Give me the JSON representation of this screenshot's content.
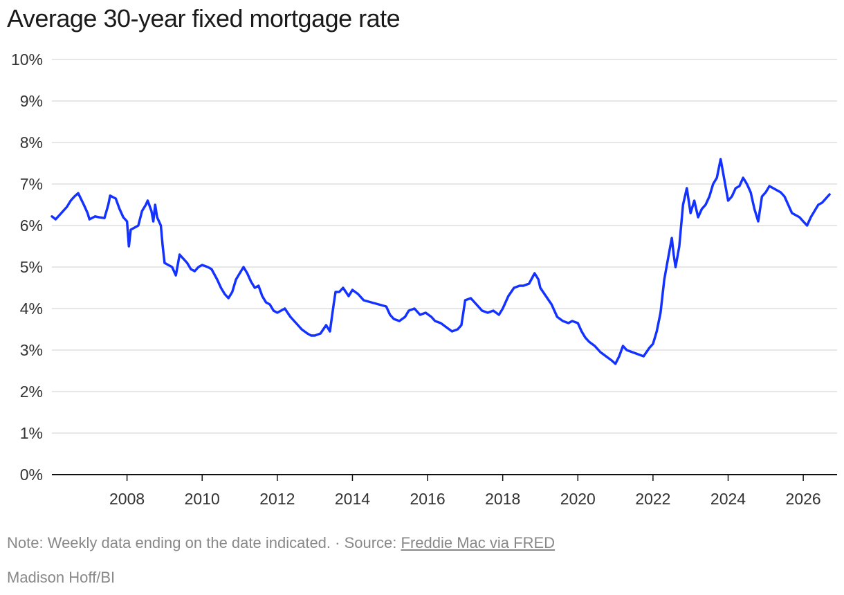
{
  "chart_data": {
    "type": "line",
    "title": "Average 30-year fixed mortgage rate",
    "xlabel": "",
    "ylabel": "",
    "ylim": [
      0,
      10
    ],
    "xlim": [
      2006.0,
      2026.9
    ],
    "grid": true,
    "y_ticks": [
      "0%",
      "1%",
      "2%",
      "3%",
      "4%",
      "5%",
      "6%",
      "7%",
      "8%",
      "9%",
      "10%"
    ],
    "y_tick_values": [
      0,
      1,
      2,
      3,
      4,
      5,
      6,
      7,
      8,
      9,
      10
    ],
    "x_ticks": [
      "2008",
      "2010",
      "2012",
      "2014",
      "2016",
      "2018",
      "2020",
      "2022",
      "2024",
      "2026"
    ],
    "x_tick_values": [
      2008,
      2010,
      2012,
      2014,
      2016,
      2018,
      2020,
      2022,
      2024,
      2026
    ],
    "color": "#1432ff",
    "series": [
      {
        "x": [
          2006.0,
          2006.1,
          2006.25,
          2006.4,
          2006.5,
          2006.6,
          2006.7,
          2006.85,
          2006.95,
          2007.0,
          2007.15,
          2007.25,
          2007.4,
          2007.5,
          2007.55,
          2007.7,
          2007.8,
          2007.9,
          2008.0,
          2008.05,
          2008.1,
          2008.2,
          2008.3,
          2008.4,
          2008.5,
          2008.55,
          2008.65,
          2008.7,
          2008.75,
          2008.8,
          2008.9,
          2008.95,
          2009.0,
          2009.1,
          2009.2,
          2009.3,
          2009.4,
          2009.5,
          2009.6,
          2009.7,
          2009.8,
          2009.9,
          2010.0,
          2010.15,
          2010.25,
          2010.4,
          2010.5,
          2010.6,
          2010.7,
          2010.8,
          2010.9,
          2011.0,
          2011.1,
          2011.2,
          2011.3,
          2011.4,
          2011.5,
          2011.6,
          2011.7,
          2011.8,
          2011.9,
          2012.0,
          2012.2,
          2012.35,
          2012.5,
          2012.65,
          2012.8,
          2012.9,
          2013.0,
          2013.15,
          2013.3,
          2013.4,
          2013.5,
          2013.55,
          2013.65,
          2013.75,
          2013.9,
          2014.0,
          2014.15,
          2014.3,
          2014.5,
          2014.7,
          2014.9,
          2015.0,
          2015.1,
          2015.25,
          2015.4,
          2015.5,
          2015.65,
          2015.8,
          2015.95,
          2016.1,
          2016.2,
          2016.35,
          2016.5,
          2016.65,
          2016.8,
          2016.9,
          2016.95,
          2017.0,
          2017.15,
          2017.3,
          2017.45,
          2017.6,
          2017.75,
          2017.9,
          2018.0,
          2018.15,
          2018.3,
          2018.45,
          2018.55,
          2018.7,
          2018.85,
          2018.95,
          2019.0,
          2019.15,
          2019.3,
          2019.45,
          2019.6,
          2019.75,
          2019.85,
          2020.0,
          2020.1,
          2020.2,
          2020.3,
          2020.45,
          2020.6,
          2020.75,
          2020.9,
          2021.0,
          2021.1,
          2021.2,
          2021.3,
          2021.45,
          2021.6,
          2021.75,
          2021.9,
          2022.0,
          2022.1,
          2022.2,
          2022.3,
          2022.4,
          2022.5,
          2022.55,
          2022.6,
          2022.7,
          2022.8,
          2022.9,
          2023.0,
          2023.1,
          2023.2,
          2023.3,
          2023.4,
          2023.5,
          2023.6,
          2023.7,
          2023.8,
          2023.9,
          2024.0,
          2024.1,
          2024.2,
          2024.3,
          2024.4,
          2024.5,
          2024.6,
          2024.7,
          2024.8,
          2024.9,
          2025.0,
          2025.1,
          2025.2,
          2025.3,
          2025.4,
          2025.5,
          2025.6,
          2025.7,
          2025.8,
          2025.9,
          2026.0,
          2026.1,
          2026.2,
          2026.3,
          2026.4,
          2026.5,
          2026.6,
          2026.7
        ],
        "values": [
          6.22,
          6.15,
          6.3,
          6.45,
          6.6,
          6.7,
          6.78,
          6.5,
          6.3,
          6.15,
          6.22,
          6.2,
          6.18,
          6.5,
          6.72,
          6.65,
          6.4,
          6.2,
          6.1,
          5.5,
          5.9,
          5.95,
          6.0,
          6.35,
          6.5,
          6.6,
          6.35,
          6.1,
          6.5,
          6.2,
          6.0,
          5.5,
          5.1,
          5.05,
          5.0,
          4.8,
          5.3,
          5.2,
          5.1,
          4.95,
          4.9,
          5.0,
          5.05,
          5.0,
          4.95,
          4.7,
          4.5,
          4.35,
          4.25,
          4.4,
          4.7,
          4.85,
          5.0,
          4.85,
          4.65,
          4.5,
          4.55,
          4.3,
          4.15,
          4.1,
          3.95,
          3.9,
          4.0,
          3.8,
          3.65,
          3.5,
          3.4,
          3.35,
          3.35,
          3.4,
          3.6,
          3.45,
          4.1,
          4.4,
          4.4,
          4.5,
          4.3,
          4.45,
          4.35,
          4.2,
          4.15,
          4.1,
          4.05,
          3.85,
          3.75,
          3.7,
          3.8,
          3.95,
          4.0,
          3.85,
          3.9,
          3.8,
          3.7,
          3.65,
          3.55,
          3.45,
          3.5,
          3.6,
          3.9,
          4.2,
          4.25,
          4.1,
          3.95,
          3.9,
          3.95,
          3.85,
          4.0,
          4.3,
          4.5,
          4.55,
          4.55,
          4.6,
          4.85,
          4.7,
          4.5,
          4.3,
          4.1,
          3.8,
          3.7,
          3.65,
          3.7,
          3.65,
          3.45,
          3.3,
          3.2,
          3.1,
          2.95,
          2.85,
          2.75,
          2.67,
          2.85,
          3.1,
          3.0,
          2.95,
          2.9,
          2.85,
          3.05,
          3.15,
          3.45,
          3.9,
          4.7,
          5.2,
          5.7,
          5.3,
          5.0,
          5.5,
          6.5,
          6.9,
          6.3,
          6.6,
          6.2,
          6.4,
          6.5,
          6.7,
          7.0,
          7.15,
          7.6,
          7.1,
          6.6,
          6.7,
          6.9,
          6.95,
          7.15,
          7.0,
          6.8,
          6.4,
          6.1,
          6.7,
          6.8,
          6.95,
          6.9,
          6.85,
          6.8,
          6.7,
          6.5,
          6.3,
          6.25,
          6.2,
          6.1,
          6.0,
          6.2,
          6.35,
          6.5,
          6.55,
          6.65,
          6.75
        ]
      }
    ]
  },
  "footer": {
    "note": "Note: Weekly data ending on the date indicated. · Source: ",
    "source_link": "Freddie Mac via FRED",
    "credit": "Madison Hoff/BI"
  }
}
